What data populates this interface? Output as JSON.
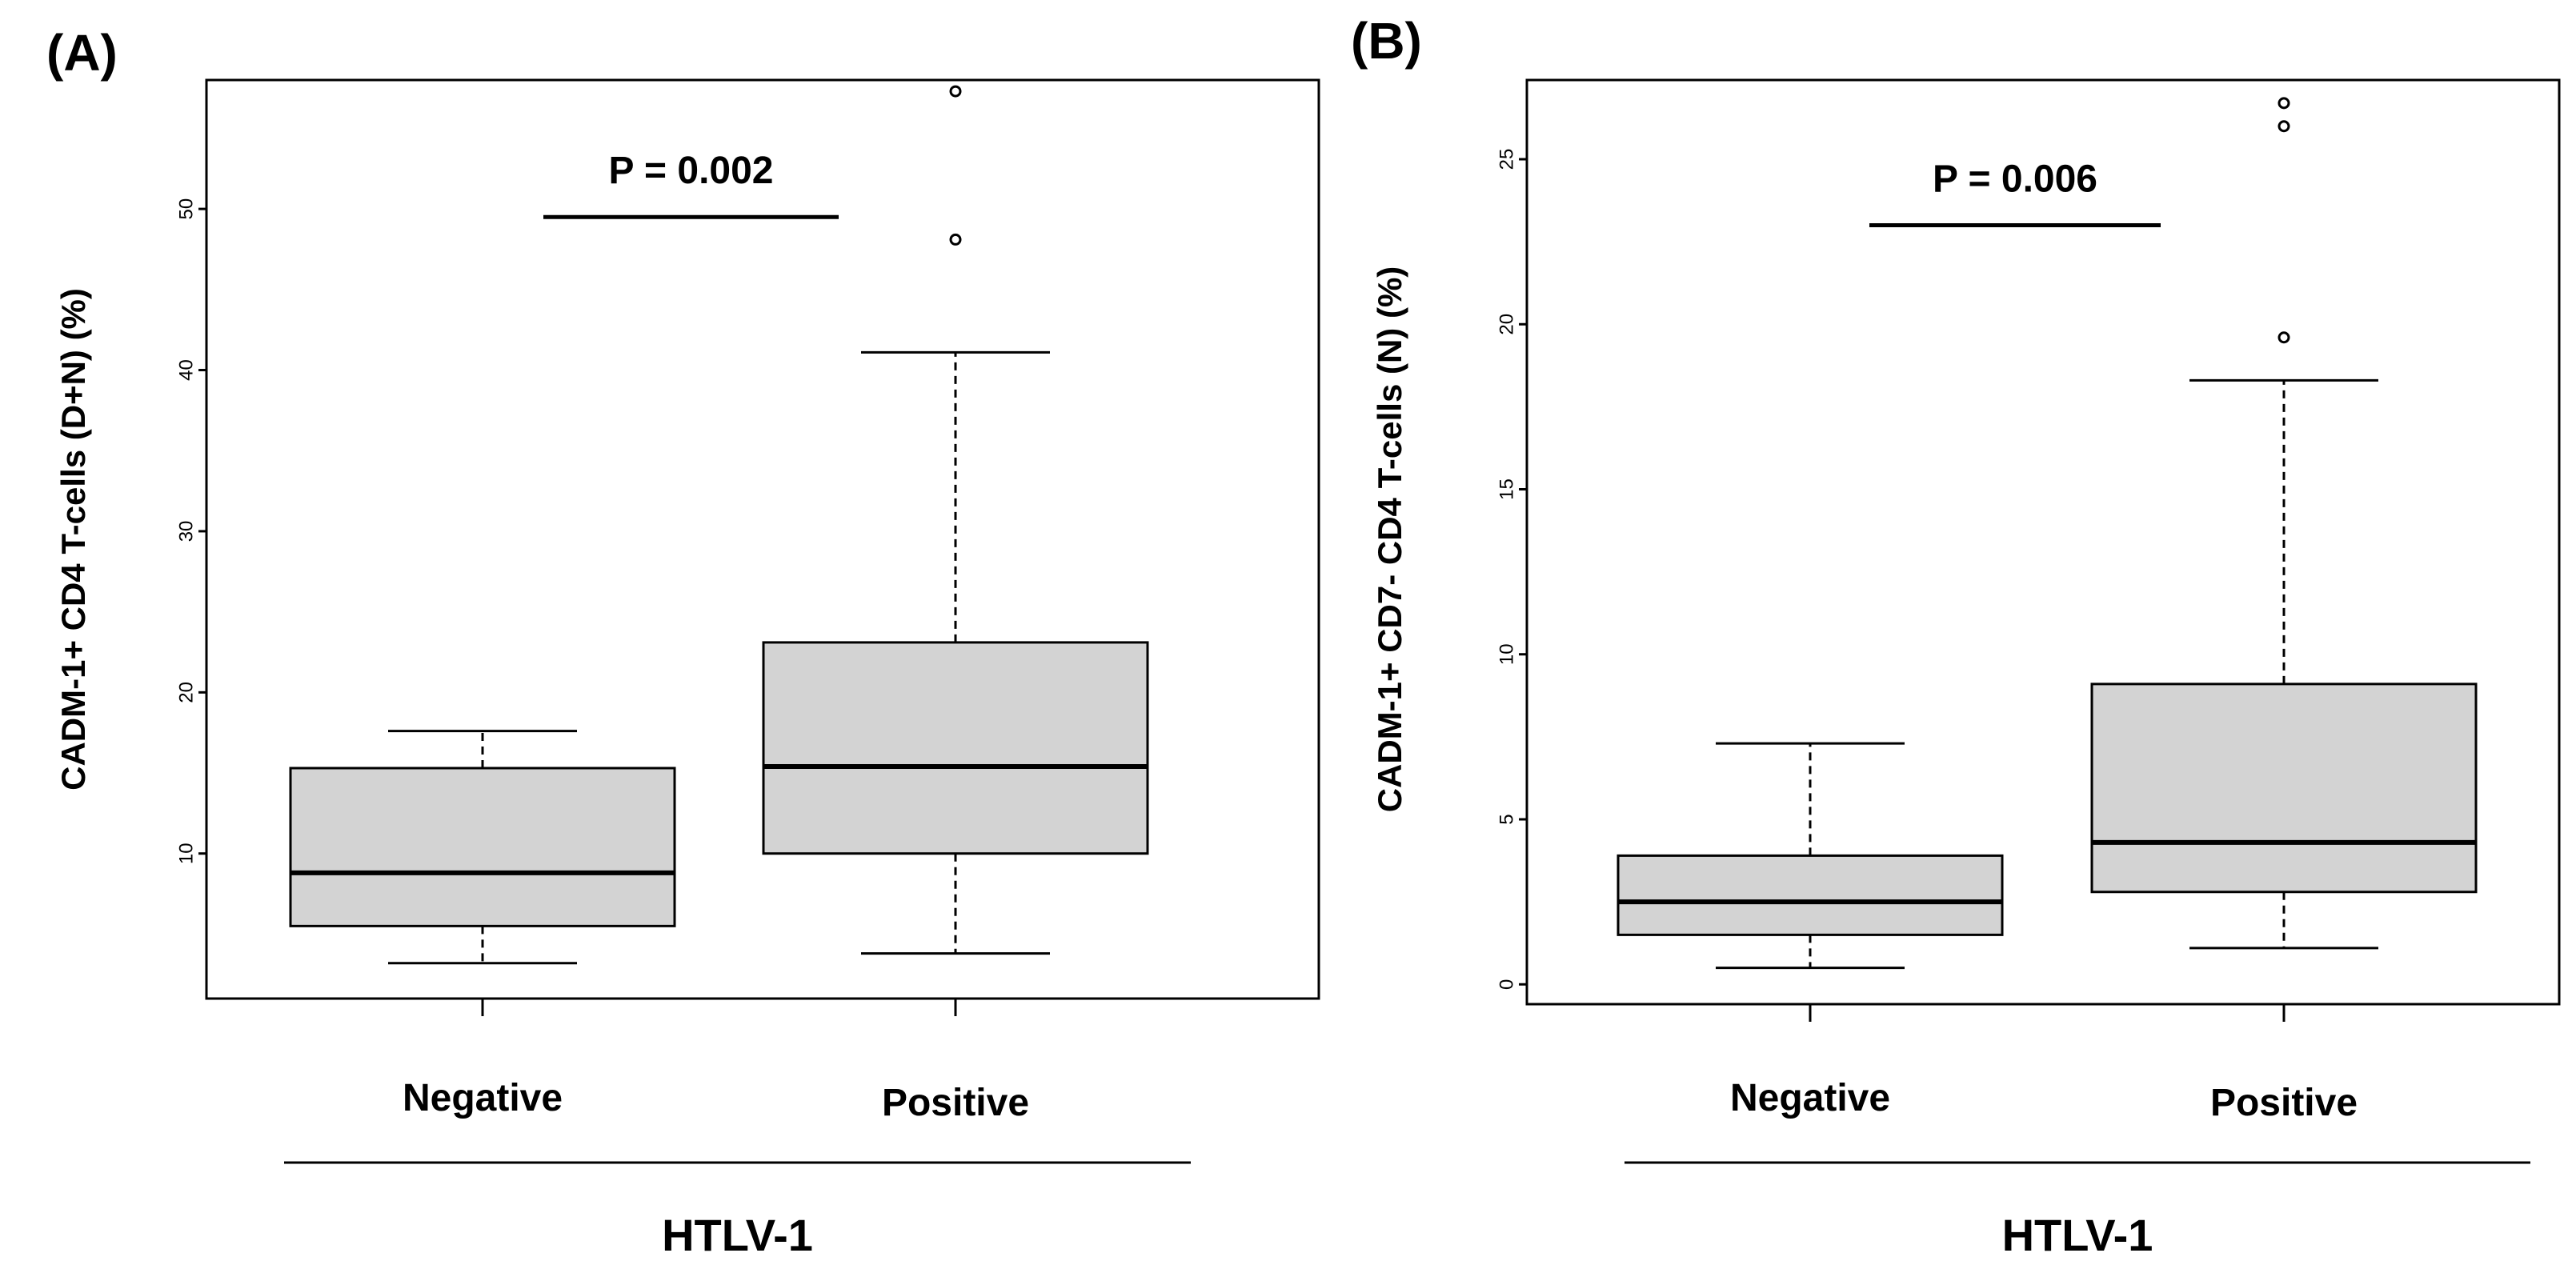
{
  "chart_data": [
    {
      "type": "box",
      "panel_label": "(A)",
      "title": "",
      "ylabel": "CADM-1+ CD4 T-cells (D+N) (%)",
      "group_label": "HTLV-1",
      "categories": [
        "Negative",
        "Positive"
      ],
      "ylim": [
        1,
        58
      ],
      "yticks": [
        10,
        20,
        30,
        40,
        50
      ],
      "boxes": [
        {
          "name": "Negative",
          "whisker_low": 3.2,
          "q1": 5.5,
          "median": 8.8,
          "q3": 15.3,
          "whisker_high": 17.6,
          "outliers": []
        },
        {
          "name": "Positive",
          "whisker_low": 3.8,
          "q1": 10.0,
          "median": 15.4,
          "q3": 23.1,
          "whisker_high": 41.1,
          "outliers": [
            48.1,
            57.3
          ]
        }
      ],
      "annotation": {
        "text": "P = 0.002",
        "y": 49.5
      }
    },
    {
      "type": "box",
      "panel_label": "(B)",
      "title": "",
      "ylabel": "CADM-1+ CD7- CD4 T-cells (N) (%)",
      "group_label": "HTLV-1",
      "categories": [
        "Negative",
        "Positive"
      ],
      "ylim": [
        -0.6,
        27.4
      ],
      "yticks": [
        0,
        5,
        10,
        15,
        20,
        25
      ],
      "boxes": [
        {
          "name": "Negative",
          "whisker_low": 0.5,
          "q1": 1.5,
          "median": 2.5,
          "q3": 3.9,
          "whisker_high": 7.3,
          "outliers": []
        },
        {
          "name": "Positive",
          "whisker_low": 1.1,
          "q1": 2.8,
          "median": 4.3,
          "q3": 9.1,
          "whisker_high": 18.3,
          "outliers": [
            19.6,
            26.0,
            26.7
          ]
        }
      ],
      "annotation": {
        "text": "P = 0.006",
        "y": 23.0
      }
    }
  ]
}
